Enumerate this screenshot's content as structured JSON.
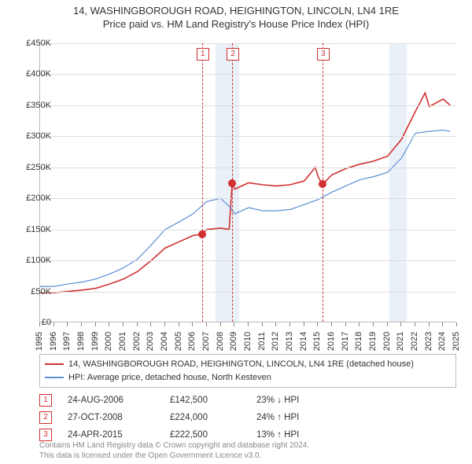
{
  "title_line1": "14, WASHINGBOROUGH ROAD, HEIGHINGTON, LINCOLN, LN4 1RE",
  "title_line2": "Price paid vs. HM Land Registry's House Price Index (HPI)",
  "chart": {
    "type": "line",
    "x_years": [
      1995,
      1996,
      1997,
      1998,
      1999,
      2000,
      2001,
      2002,
      2003,
      2004,
      2005,
      2006,
      2007,
      2008,
      2009,
      2010,
      2011,
      2012,
      2013,
      2014,
      2015,
      2016,
      2017,
      2018,
      2019,
      2020,
      2021,
      2022,
      2023,
      2024,
      2025
    ],
    "ylim": [
      0,
      450000
    ],
    "ytick_step": 50000,
    "ylabels": [
      "£0",
      "£50K",
      "£100K",
      "£150K",
      "£200K",
      "£250K",
      "£300K",
      "£350K",
      "£400K",
      "£450K"
    ],
    "grid_color": "#dddddd",
    "axis_color": "#bbbbbb",
    "background_color": "#ffffff",
    "series": [
      {
        "name": "red",
        "label": "14, WASHINGBOROUGH ROAD, HEIGHINGTON, LINCOLN, LN4 1RE (detached house)",
        "color": "#d03030",
        "width": 1.6,
        "data": [
          [
            1995,
            48000
          ],
          [
            1996,
            48000
          ],
          [
            1997,
            50000
          ],
          [
            1998,
            52000
          ],
          [
            1999,
            55000
          ],
          [
            2000,
            62000
          ],
          [
            2001,
            70000
          ],
          [
            2002,
            82000
          ],
          [
            2003,
            100000
          ],
          [
            2004,
            120000
          ],
          [
            2005,
            130000
          ],
          [
            2006,
            140000
          ],
          [
            2006.65,
            142500
          ],
          [
            2007,
            150000
          ],
          [
            2008,
            152000
          ],
          [
            2008.6,
            150000
          ],
          [
            2008.82,
            224000
          ],
          [
            2009,
            215000
          ],
          [
            2010,
            225000
          ],
          [
            2011,
            222000
          ],
          [
            2012,
            220000
          ],
          [
            2013,
            222000
          ],
          [
            2014,
            228000
          ],
          [
            2014.8,
            250000
          ],
          [
            2015,
            235000
          ],
          [
            2015.31,
            222500
          ],
          [
            2016,
            238000
          ],
          [
            2017,
            248000
          ],
          [
            2018,
            255000
          ],
          [
            2019,
            260000
          ],
          [
            2020,
            268000
          ],
          [
            2021,
            295000
          ],
          [
            2022,
            340000
          ],
          [
            2022.7,
            370000
          ],
          [
            2023,
            348000
          ],
          [
            2024,
            360000
          ],
          [
            2024.5,
            350000
          ]
        ]
      },
      {
        "name": "blue",
        "label": "HPI: Average price, detached house, North Kesteven",
        "color": "#5b8fd6",
        "width": 1.2,
        "data": [
          [
            1995,
            58000
          ],
          [
            1996,
            58000
          ],
          [
            1997,
            62000
          ],
          [
            1998,
            65000
          ],
          [
            1999,
            70000
          ],
          [
            2000,
            78000
          ],
          [
            2001,
            88000
          ],
          [
            2002,
            102000
          ],
          [
            2003,
            125000
          ],
          [
            2004,
            150000
          ],
          [
            2005,
            162000
          ],
          [
            2006,
            175000
          ],
          [
            2007,
            195000
          ],
          [
            2008,
            200000
          ],
          [
            2008.7,
            185000
          ],
          [
            2009,
            175000
          ],
          [
            2010,
            185000
          ],
          [
            2011,
            180000
          ],
          [
            2012,
            180000
          ],
          [
            2013,
            182000
          ],
          [
            2014,
            190000
          ],
          [
            2015,
            198000
          ],
          [
            2016,
            210000
          ],
          [
            2017,
            220000
          ],
          [
            2018,
            230000
          ],
          [
            2019,
            235000
          ],
          [
            2020,
            242000
          ],
          [
            2021,
            265000
          ],
          [
            2022,
            305000
          ],
          [
            2023,
            308000
          ],
          [
            2024,
            310000
          ],
          [
            2024.5,
            308000
          ]
        ]
      }
    ],
    "event_bands": [
      {
        "start": 2007.6,
        "end": 2009.3,
        "color": "#dce6f2"
      },
      {
        "start": 2020.15,
        "end": 2021.4,
        "color": "#dce6f2"
      }
    ],
    "sale_markers": [
      {
        "num": "1",
        "year": 2006.65,
        "price": 142500
      },
      {
        "num": "2",
        "year": 2008.82,
        "price": 224000
      },
      {
        "num": "3",
        "year": 2015.31,
        "price": 222500
      }
    ]
  },
  "sales": [
    {
      "num": "1",
      "date": "24-AUG-2006",
      "price": "£142,500",
      "diff": "23% ↓ HPI"
    },
    {
      "num": "2",
      "date": "27-OCT-2008",
      "price": "£224,000",
      "diff": "24% ↑ HPI"
    },
    {
      "num": "3",
      "date": "24-APR-2015",
      "price": "£222,500",
      "diff": "13% ↑ HPI"
    }
  ],
  "footnote_line1": "Contains HM Land Registry data © Crown copyright and database right 2024.",
  "footnote_line2": "This data is licensed under the Open Government Licence v3.0."
}
